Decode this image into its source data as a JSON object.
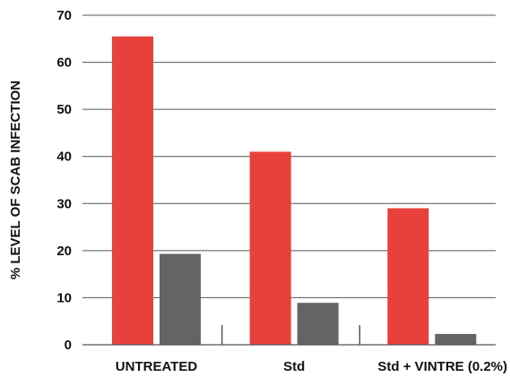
{
  "chart_data": {
    "type": "bar",
    "title": "",
    "xlabel": "",
    "ylabel": "% LEVEL OF SCAB INFECTION",
    "ylim": [
      0,
      70
    ],
    "yticks": [
      0,
      10,
      20,
      30,
      40,
      50,
      60,
      70
    ],
    "grid": true,
    "legend": "none",
    "categories": [
      "UNTREATED",
      "Std",
      "Std + VINTRE (0.2%)"
    ],
    "series": [
      {
        "color": "#e8403a",
        "values": [
          65.5,
          41,
          29
        ]
      },
      {
        "color": "#646464",
        "values": [
          19.3,
          8.9,
          2.3
        ]
      }
    ],
    "colors": {
      "grid": "#555555",
      "axis": "#555555"
    }
  }
}
